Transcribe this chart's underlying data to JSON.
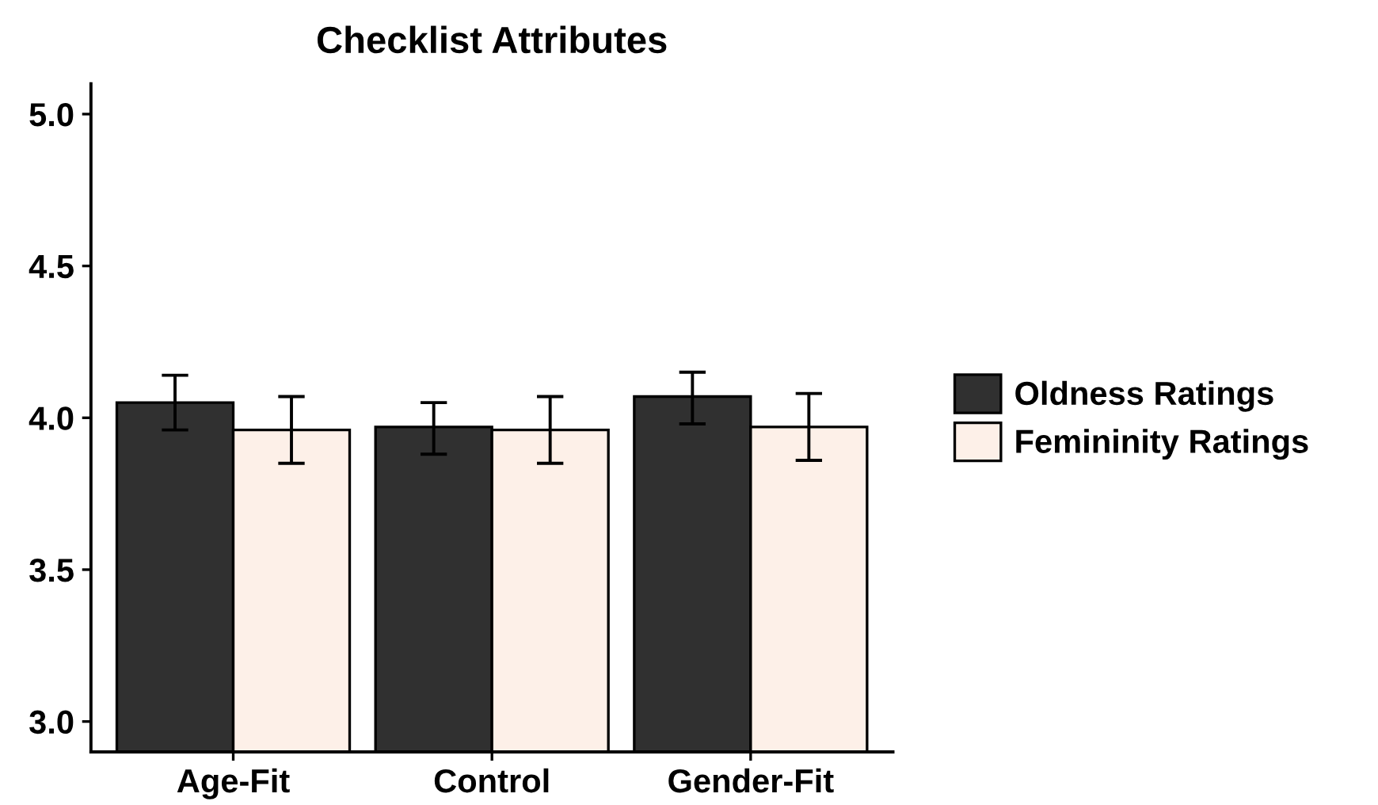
{
  "chart_data": {
    "type": "bar",
    "title": "Checklist Attributes",
    "categories": [
      "Age-Fit",
      "Control",
      "Gender-Fit"
    ],
    "series": [
      {
        "name": "Oldness Ratings",
        "color": "#303030",
        "values": [
          4.05,
          3.97,
          4.07
        ],
        "errors": [
          [
            3.96,
            4.14
          ],
          [
            3.88,
            4.05
          ],
          [
            3.98,
            4.15
          ]
        ]
      },
      {
        "name": "Femininity Ratings",
        "color": "#fdf0e8",
        "values": [
          3.96,
          3.96,
          3.97
        ],
        "errors": [
          [
            3.85,
            4.07
          ],
          [
            3.85,
            4.07
          ],
          [
            3.86,
            4.08
          ]
        ]
      }
    ],
    "ylim": [
      2.9,
      5.1
    ],
    "yticks": [
      {
        "value": 3,
        "label": "3.0"
      },
      3.5,
      {
        "value": 4,
        "label": "4.0"
      },
      4.5,
      {
        "value": 5,
        "label": "5.0"
      }
    ],
    "grid": false,
    "legend": "right"
  }
}
